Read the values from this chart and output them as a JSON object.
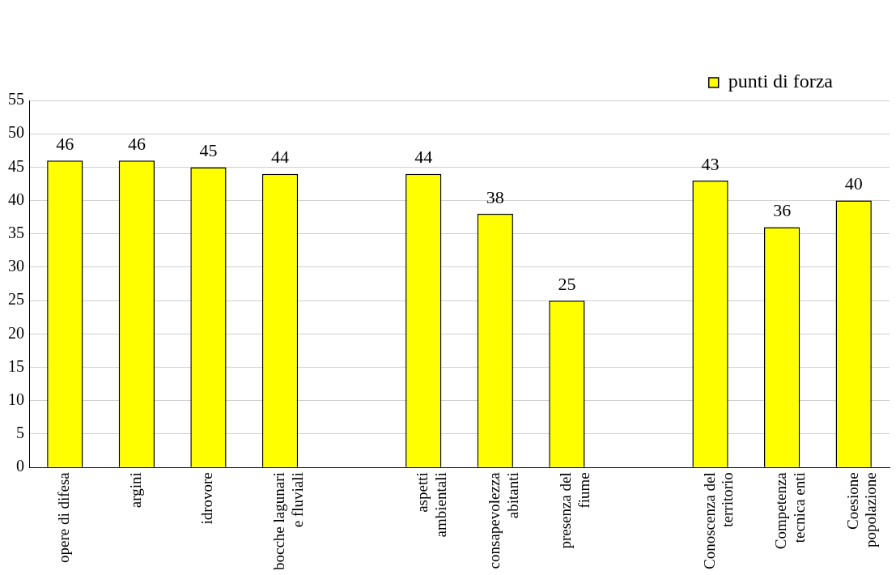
{
  "chart_data": {
    "type": "bar",
    "categories": [
      "opere di difesa",
      "argini",
      "idrovore",
      "bocche lagunari e fluviali",
      null,
      "aspetti ambientali",
      "consapevolezza abitanti",
      "presenza del fiume",
      null,
      "Conoscenza del territorio",
      "Competenza tecnica enti",
      "Coesione popolazione"
    ],
    "series": [
      {
        "name": "punti di forza",
        "color": "#ffff00",
        "values": [
          46,
          46,
          45,
          44,
          null,
          44,
          38,
          25,
          null,
          43,
          36,
          40
        ]
      }
    ],
    "ylim": [
      0,
      55
    ],
    "yticks": [
      0,
      5,
      10,
      15,
      20,
      25,
      30,
      35,
      40,
      45,
      50,
      55
    ],
    "grid": "y",
    "legend": "top right",
    "data_labels": true
  }
}
